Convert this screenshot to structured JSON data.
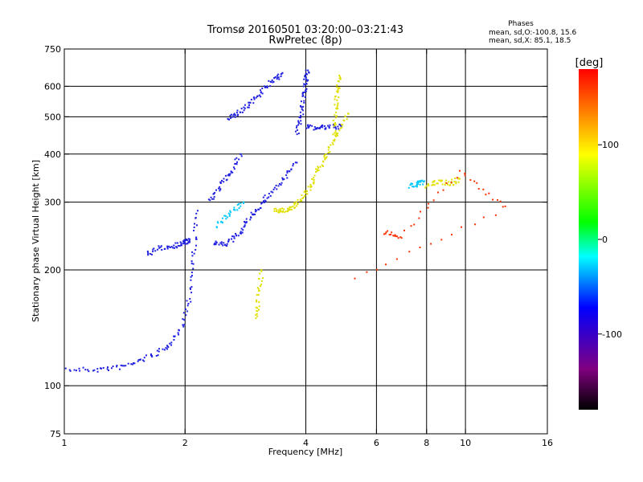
{
  "chart_data": {
    "type": "scatter",
    "title": "Tromsø 20160501 03:20:00–03:21:43",
    "subtitle": "RwPretec (8p)",
    "xlabel": "Frequency [MHz]",
    "ylabel": "Stationary phase Virtual Height [km]",
    "x_scale": "log",
    "y_scale": "log",
    "xlim": [
      1,
      16
    ],
    "ylim": [
      75,
      750
    ],
    "x_ticks": [
      1,
      2,
      4,
      6,
      8,
      10,
      16
    ],
    "x_tick_labels": [
      "1",
      "2",
      "4",
      "6",
      "8",
      "10",
      "16"
    ],
    "y_ticks": [
      75,
      100,
      200,
      300,
      400,
      500,
      600,
      750
    ],
    "y_tick_labels": [
      "75",
      "100",
      "200",
      "300",
      "400",
      "500",
      "600",
      "750"
    ],
    "x_grid": [
      2,
      4,
      6,
      8,
      10
    ],
    "y_grid": [
      100,
      200,
      300,
      400,
      500,
      600
    ],
    "grid": true,
    "legend_block": {
      "heading": "Phases",
      "line1": "mean, sd,O:-100.8, 15.6",
      "line2": "mean, sd,X:  85.1, 18.5"
    },
    "colorbar": {
      "label": "[deg]",
      "range": [
        -180,
        180
      ],
      "ticks": [
        100,
        0,
        -100
      ],
      "tick_labels": [
        "100",
        "0",
        "-100"
      ],
      "colormap": [
        "#000000",
        "#800080",
        "#0000ff",
        "#00ffff",
        "#00ff00",
        "#ffff00",
        "#ff0000"
      ]
    },
    "series": [
      {
        "phase": -105,
        "color": "#2020e0",
        "traces": [
          {
            "f": [
              1.0,
              1.2,
              1.4,
              1.6,
              1.8,
              1.95,
              2.05,
              2.1,
              2.15
            ],
            "h": [
              110,
              110,
              112,
              118,
              125,
              140,
              170,
              220,
              285
            ]
          },
          {
            "f": [
              1.6,
              1.75,
              1.9,
              2.0,
              2.05
            ],
            "h": [
              220,
              228,
              232,
              236,
              238
            ]
          },
          {
            "f": [
              2.35,
              2.5,
              2.7,
              2.85,
              3.0,
              3.2,
              3.5,
              3.8
            ],
            "h": [
              235,
              232,
              245,
              265,
              285,
              310,
              340,
              380
            ]
          },
          {
            "f": [
              2.55,
              2.7,
              2.9,
              3.1,
              3.3,
              3.5
            ],
            "h": [
              495,
              510,
              540,
              580,
              620,
              650
            ]
          },
          {
            "f": [
              2.3,
              2.45,
              2.6,
              2.75
            ],
            "h": [
              300,
              330,
              360,
              400
            ]
          },
          {
            "f": [
              3.8,
              3.9,
              3.95,
              4.0,
              4.05
            ],
            "h": [
              455,
              500,
              560,
              620,
              660
            ]
          },
          {
            "f": [
              4.0,
              4.3,
              4.6,
              4.9
            ],
            "h": [
              470,
              468,
              470,
              472
            ]
          }
        ]
      },
      {
        "phase": 75,
        "color": "#e0e000",
        "traces": [
          {
            "f": [
              3.35,
              3.5,
              3.7,
              3.9,
              4.1,
              4.3,
              4.5,
              4.8,
              5.1
            ],
            "h": [
              285,
              285,
              290,
              305,
              330,
              365,
              400,
              450,
              510
            ]
          },
          {
            "f": [
              4.7,
              4.75,
              4.8,
              4.85
            ],
            "h": [
              450,
              520,
              580,
              640
            ]
          },
          {
            "f": [
              3.0,
              3.05,
              3.1
            ],
            "h": [
              150,
              170,
              200
            ]
          },
          {
            "f": [
              8.0,
              8.6,
              9.2,
              9.6
            ],
            "h": [
              330,
              340,
              335,
              345
            ]
          }
        ]
      },
      {
        "phase": -20,
        "color": "#00c8ff",
        "traces": [
          {
            "f": [
              2.4,
              2.6,
              2.8
            ],
            "h": [
              260,
              280,
              300
            ]
          },
          {
            "f": [
              7.3,
              7.6,
              7.9
            ],
            "h": [
              330,
              335,
              340
            ]
          }
        ]
      },
      {
        "phase": 160,
        "color": "#ff3000",
        "traces": [
          {
            "f": [
              6.3,
              6.9,
              9.7,
              12.6,
              5.3
            ],
            "h": [
              250,
              245,
              360,
              290,
              190
            ]
          }
        ]
      }
    ]
  }
}
